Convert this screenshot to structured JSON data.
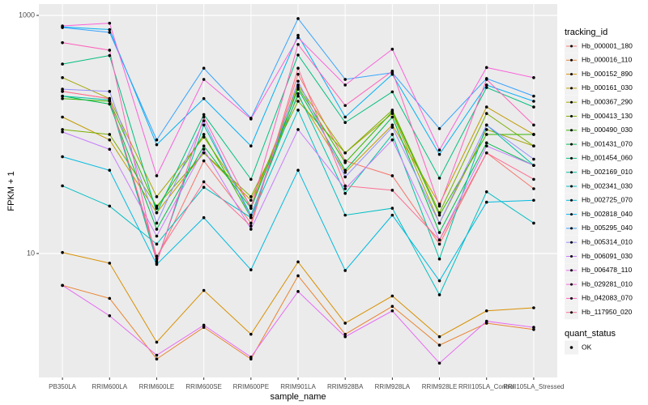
{
  "chart_data": {
    "type": "line",
    "log_y": true,
    "grid": true,
    "x_label": "sample_name",
    "y_label": "FPKM + 1",
    "categories": [
      "PB350LA",
      "RRIM600LA",
      "RRIM600LE",
      "RRIM600SE",
      "RRIM600PE",
      "RRIM901LA",
      "RRIM928BA",
      "RRIM928LA",
      "RRIM928LE",
      "RRII105LA_Control",
      "RRII105LA_Stressed"
    ],
    "ylim": [
      0.91,
      1245
    ],
    "yticks": [
      10,
      1000
    ],
    "legend_title": "tracking_id",
    "point_legend": {
      "title": "quant_status",
      "labels": [
        "OK"
      ],
      "color": "#000000"
    },
    "series": [
      {
        "name": "Hb_000001_180",
        "color": "#F8766D",
        "values": [
          230,
          200,
          9,
          60,
          18,
          320,
          60,
          45,
          12,
          70,
          35
        ]
      },
      {
        "name": "Hb_000016_110",
        "color": "#EA8331",
        "values": [
          5.4,
          4.2,
          1.3,
          2.4,
          1.3,
          6.5,
          2.1,
          3.6,
          1.7,
          2.6,
          2.3
        ]
      },
      {
        "name": "Hb_000152_890",
        "color": "#D89000",
        "values": [
          10.2,
          8.3,
          1.8,
          4.9,
          2.1,
          8.5,
          2.6,
          4.4,
          2.0,
          3.3,
          3.5
        ]
      },
      {
        "name": "Hb_000161_030",
        "color": "#C09B00",
        "values": [
          140,
          90,
          22,
          70,
          28,
          210,
          48,
          120,
          26,
          170,
          100
        ]
      },
      {
        "name": "Hb_000367_290",
        "color": "#A3A500",
        "values": [
          300,
          200,
          30,
          95,
          25,
          260,
          70,
          150,
          18,
          110,
          80
        ]
      },
      {
        "name": "Hb_000413_130",
        "color": "#7CAE00",
        "values": [
          110,
          100,
          25,
          70,
          30,
          190,
          70,
          160,
          22,
          150,
          80
        ]
      },
      {
        "name": "Hb_000490_030",
        "color": "#39B600",
        "values": [
          200,
          190,
          24,
          100,
          20,
          250,
          58,
          155,
          21,
          100,
          100
        ]
      },
      {
        "name": "Hb_001431_070",
        "color": "#00BB4E",
        "values": [
          210,
          180,
          16,
          80,
          24,
          240,
          50,
          140,
          15,
          85,
          55
        ]
      },
      {
        "name": "Hb_001454_060",
        "color": "#00BF7D",
        "values": [
          390,
          460,
          22,
          147,
          42,
          465,
          126,
          228,
          43,
          248,
          170
        ]
      },
      {
        "name": "Hb_002169_010",
        "color": "#00C1A3",
        "values": [
          210,
          195,
          8.6,
          120,
          21,
          220,
          32,
          100,
          9,
          120,
          55
        ]
      },
      {
        "name": "Hb_002341_030",
        "color": "#00BFC4",
        "values": [
          37,
          25,
          12,
          36,
          20,
          160,
          21,
          24,
          4.5,
          33,
          18
        ]
      },
      {
        "name": "Hb_002725_070",
        "color": "#00BAE0",
        "values": [
          65,
          50,
          8.1,
          20,
          7.3,
          50,
          7.2,
          21,
          5.9,
          27,
          28
        ]
      },
      {
        "name": "Hb_002818_040",
        "color": "#00B0F6",
        "values": [
          800,
          760,
          82,
          200,
          80,
          680,
          140,
          320,
          68,
          260,
          190
        ]
      },
      {
        "name": "Hb_005295_040",
        "color": "#35A2FF",
        "values": [
          790,
          720,
          90,
          360,
          137,
          940,
          290,
          330,
          112,
          295,
          210
        ]
      },
      {
        "name": "Hb_005314_010",
        "color": "#9590FF",
        "values": [
          240,
          230,
          18,
          130,
          20,
          280,
          44,
          115,
          18,
          120,
          62
        ]
      },
      {
        "name": "Hb_006091_030",
        "color": "#C77CFF",
        "values": [
          105,
          75,
          14,
          75,
          16,
          110,
          35,
          90,
          13,
          80,
          55
        ]
      },
      {
        "name": "Hb_006478_110",
        "color": "#E76BF3",
        "values": [
          5.4,
          3.0,
          1.4,
          2.5,
          1.35,
          4.8,
          2.0,
          3.3,
          1.2,
          2.7,
          2.4
        ]
      },
      {
        "name": "Hb_029281_010",
        "color": "#FA62DB",
        "values": [
          815,
          860,
          45,
          290,
          135,
          650,
          260,
          520,
          74,
          365,
          300
        ]
      },
      {
        "name": "Hb_042083_070",
        "color": "#FF62BC",
        "values": [
          590,
          510,
          8.3,
          140,
          24,
          570,
          175,
          340,
          25,
          290,
          120
        ]
      },
      {
        "name": "Hb_117950_020",
        "color": "#FF6C91",
        "values": [
          230,
          200,
          9.5,
          40,
          17,
          360,
          37,
          34,
          13,
          70,
          42
        ]
      }
    ]
  }
}
